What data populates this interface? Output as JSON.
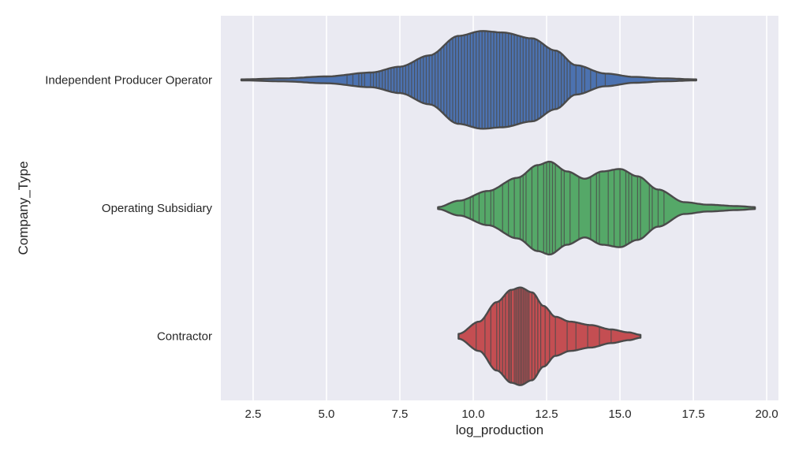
{
  "chart_data": {
    "type": "violin",
    "orientation": "horizontal",
    "inner": "stick",
    "xlabel": "log_production",
    "ylabel": "Company_Type",
    "xlim": [
      1.4,
      20.4
    ],
    "xticks": [
      2.5,
      5.0,
      7.5,
      10.0,
      12.5,
      15.0,
      17.5,
      20.0
    ],
    "xtick_labels": [
      "2.5",
      "5.0",
      "7.5",
      "10.0",
      "12.5",
      "15.0",
      "17.5",
      "20.0"
    ],
    "grid": true,
    "background": "#eaeaf2",
    "outline_color": "#4a4a4a",
    "categories": [
      "Independent Producer Operator",
      "Operating Subsidiary",
      "Contractor"
    ],
    "series": [
      {
        "color": "#4c72b0",
        "density": [
          [
            2.1,
            0.01
          ],
          [
            3.5,
            0.03
          ],
          [
            5.0,
            0.07
          ],
          [
            6.5,
            0.15
          ],
          [
            7.5,
            0.27
          ],
          [
            8.5,
            0.5
          ],
          [
            9.5,
            0.9
          ],
          [
            10.3,
            1.0
          ],
          [
            11.0,
            0.97
          ],
          [
            12.0,
            0.85
          ],
          [
            12.8,
            0.6
          ],
          [
            13.5,
            0.3
          ],
          [
            14.5,
            0.13
          ],
          [
            15.5,
            0.06
          ],
          [
            16.5,
            0.03
          ],
          [
            17.6,
            0.01
          ]
        ],
        "sticks": [
          5.7,
          5.9,
          6.1,
          6.2,
          6.3,
          6.5,
          6.6,
          6.7,
          6.8,
          6.9,
          7.0,
          7.1,
          7.2,
          7.3,
          7.4,
          7.5,
          7.6,
          7.7,
          7.8,
          7.9,
          8.0,
          8.1,
          8.2,
          8.3,
          8.4,
          8.5,
          8.6,
          8.7,
          8.8,
          8.9,
          9.0,
          9.1,
          9.2,
          9.3,
          9.4,
          9.5,
          9.6,
          9.7,
          9.8,
          9.9,
          10.0,
          10.1,
          10.2,
          10.3,
          10.4,
          10.5,
          10.6,
          10.7,
          10.8,
          10.9,
          11.0,
          11.1,
          11.2,
          11.3,
          11.4,
          11.5,
          11.6,
          11.7,
          11.8,
          11.9,
          12.0,
          12.1,
          12.2,
          12.3,
          12.4,
          12.5,
          12.6,
          12.7,
          12.8,
          12.9,
          13.0,
          13.1,
          13.2,
          13.3,
          13.5,
          13.7,
          13.8,
          14.0,
          14.2,
          14.5
        ]
      },
      {
        "color": "#55a868",
        "density": [
          [
            8.8,
            0.02
          ],
          [
            9.5,
            0.15
          ],
          [
            10.5,
            0.35
          ],
          [
            11.5,
            0.62
          ],
          [
            12.2,
            0.88
          ],
          [
            12.6,
            0.95
          ],
          [
            13.2,
            0.75
          ],
          [
            13.8,
            0.6
          ],
          [
            14.4,
            0.75
          ],
          [
            15.0,
            0.8
          ],
          [
            15.6,
            0.65
          ],
          [
            16.3,
            0.38
          ],
          [
            17.2,
            0.12
          ],
          [
            18.0,
            0.07
          ],
          [
            19.0,
            0.04
          ],
          [
            19.6,
            0.02
          ]
        ],
        "sticks": [
          9.7,
          9.9,
          10.0,
          10.2,
          10.4,
          10.6,
          10.7,
          11.0,
          11.2,
          11.4,
          11.6,
          11.7,
          11.8,
          12.0,
          12.2,
          12.4,
          12.5,
          12.6,
          12.7,
          12.8,
          13.0,
          13.1,
          13.3,
          13.6,
          14.0,
          14.2,
          14.3,
          14.6,
          14.8,
          15.0,
          15.2,
          15.3,
          15.4,
          15.6,
          15.7,
          16.0,
          16.1,
          16.3,
          16.5
        ]
      },
      {
        "color": "#c44e52",
        "density": [
          [
            9.5,
            0.05
          ],
          [
            10.2,
            0.3
          ],
          [
            10.8,
            0.7
          ],
          [
            11.3,
            0.95
          ],
          [
            11.6,
            1.0
          ],
          [
            12.0,
            0.9
          ],
          [
            12.4,
            0.62
          ],
          [
            12.8,
            0.4
          ],
          [
            13.3,
            0.3
          ],
          [
            14.0,
            0.23
          ],
          [
            14.7,
            0.14
          ],
          [
            15.3,
            0.08
          ],
          [
            15.7,
            0.03
          ]
        ],
        "sticks": [
          10.1,
          10.4,
          10.6,
          10.8,
          10.9,
          11.0,
          11.1,
          11.2,
          11.25,
          11.3,
          11.4,
          11.45,
          11.5,
          11.55,
          11.6,
          11.65,
          11.7,
          11.75,
          11.8,
          11.85,
          11.9,
          12.0,
          12.1,
          12.2,
          12.3,
          12.45,
          12.6,
          12.8,
          13.2,
          13.5,
          13.9,
          14.3,
          14.7
        ]
      }
    ]
  }
}
